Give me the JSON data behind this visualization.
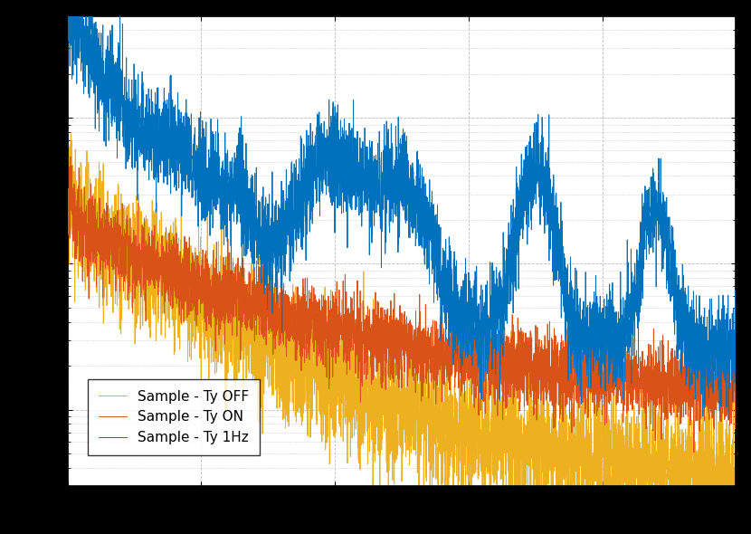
{
  "title": "",
  "xlabel": "",
  "ylabel": "",
  "line1_label": "Sample - Ty 1Hz",
  "line2_label": "Sample - Ty ON",
  "line3_label": "Sample - Ty OFF",
  "line1_color": "#0072BD",
  "line2_color": "#D95319",
  "line3_color": "#EDB120",
  "background_color": "#FFFFFF",
  "grid_color": "#BBBBBB",
  "xmin": 0,
  "xmax": 500,
  "ymin": 3e-09,
  "ymax": 5e-06,
  "legend_loc": "lower left",
  "legend_fontsize": 11
}
